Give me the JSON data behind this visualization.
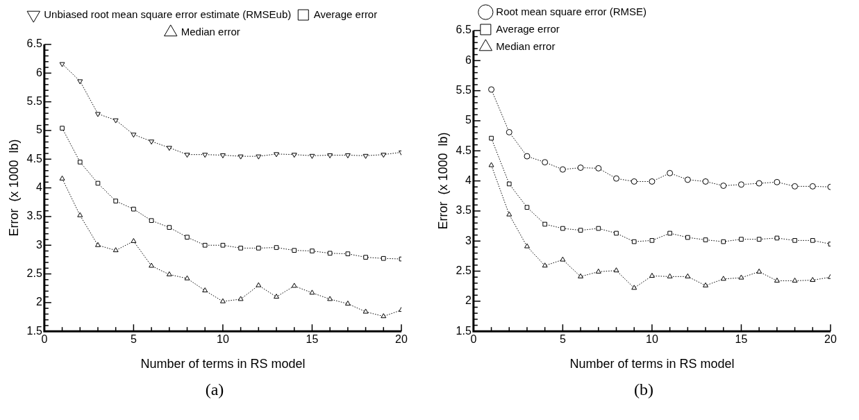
{
  "chart_data": [
    {
      "type": "line",
      "xlabel": "Number of terms in RS model",
      "ylabel": "Error  (x 1000  lb)",
      "annotations": [
        "(a)"
      ],
      "line_style": "dotted",
      "legend": "top",
      "grid": false,
      "x": [
        1,
        2,
        3,
        4,
        5,
        6,
        7,
        8,
        9,
        10,
        11,
        12,
        13,
        14,
        15,
        16,
        17,
        18,
        19,
        20
      ],
      "xlim": [
        0,
        20
      ],
      "xticks": [
        0,
        {
          "value": 1,
          "label": null
        },
        {
          "value": 2,
          "label": null
        },
        {
          "value": 3,
          "label": null
        },
        {
          "value": 4,
          "label": null
        },
        5,
        {
          "value": 6,
          "label": null
        },
        {
          "value": 7,
          "label": null
        },
        {
          "value": 8,
          "label": null
        },
        {
          "value": 9,
          "label": null
        },
        10,
        {
          "value": 11,
          "label": null
        },
        {
          "value": 12,
          "label": null
        },
        {
          "value": 13,
          "label": null
        },
        {
          "value": 14,
          "label": null
        },
        15,
        {
          "value": 16,
          "label": null
        },
        {
          "value": 17,
          "label": null
        },
        {
          "value": 18,
          "label": null
        },
        {
          "value": 19,
          "label": null
        },
        20
      ],
      "ylim": [
        1.5,
        6.5
      ],
      "yticks": [
        1.5,
        2,
        2.5,
        3,
        3.5,
        4,
        4.5,
        5,
        5.5,
        6,
        6.5
      ],
      "series": [
        {
          "name": "Unbiased root mean square error estimate (RMSEub)",
          "color": "#000000",
          "marker": "triangle_down",
          "values": [
            6.16,
            5.86,
            5.29,
            5.18,
            4.93,
            4.81,
            4.7,
            4.58,
            4.58,
            4.57,
            4.55,
            4.55,
            4.59,
            4.58,
            4.56,
            4.57,
            4.57,
            4.56,
            4.58,
            4.62
          ]
        },
        {
          "name": "Average error",
          "color": "#000000",
          "marker": "square",
          "values": [
            5.04,
            4.45,
            4.08,
            3.77,
            3.63,
            3.43,
            3.31,
            3.14,
            3.0,
            3.0,
            2.95,
            2.95,
            2.96,
            2.91,
            2.9,
            2.86,
            2.85,
            2.79,
            2.77,
            2.76
          ]
        },
        {
          "name": "Median error",
          "color": "#000000",
          "marker": "triangle",
          "values": [
            4.16,
            3.52,
            3.0,
            2.91,
            3.07,
            2.64,
            2.49,
            2.42,
            2.21,
            2.02,
            2.06,
            2.3,
            2.1,
            2.29,
            2.17,
            2.06,
            1.98,
            1.84,
            1.76,
            1.87
          ]
        }
      ]
    },
    {
      "type": "line",
      "xlabel": "Number of terms in RS model",
      "ylabel": "Error  (x 1000  lb)",
      "annotations": [
        "(b)"
      ],
      "line_style": "dotted",
      "legend": "top left",
      "grid": false,
      "x": [
        1,
        2,
        3,
        4,
        5,
        6,
        7,
        8,
        9,
        10,
        11,
        12,
        13,
        14,
        15,
        16,
        17,
        18,
        19,
        20
      ],
      "xlim": [
        0,
        20
      ],
      "xticks": [
        0,
        {
          "value": 1,
          "label": null
        },
        {
          "value": 2,
          "label": null
        },
        {
          "value": 3,
          "label": null
        },
        {
          "value": 4,
          "label": null
        },
        5,
        {
          "value": 6,
          "label": null
        },
        {
          "value": 7,
          "label": null
        },
        {
          "value": 8,
          "label": null
        },
        {
          "value": 9,
          "label": null
        },
        10,
        {
          "value": 11,
          "label": null
        },
        {
          "value": 12,
          "label": null
        },
        {
          "value": 13,
          "label": null
        },
        {
          "value": 14,
          "label": null
        },
        15,
        {
          "value": 16,
          "label": null
        },
        {
          "value": 17,
          "label": null
        },
        {
          "value": 18,
          "label": null
        },
        {
          "value": 19,
          "label": null
        },
        20
      ],
      "ylim": [
        1.5,
        6.5
      ],
      "yticks": [
        1.5,
        2,
        2.5,
        3,
        3.5,
        4,
        4.5,
        5,
        5.5,
        6,
        6.5
      ],
      "series": [
        {
          "name": "Root mean square error (RMSE)",
          "color": "#000000",
          "marker": "circle",
          "values": [
            5.52,
            4.81,
            4.41,
            4.31,
            4.19,
            4.22,
            4.21,
            4.04,
            3.99,
            3.99,
            4.13,
            4.02,
            3.99,
            3.92,
            3.94,
            3.96,
            3.98,
            3.91,
            3.91,
            3.9
          ]
        },
        {
          "name": "Average error",
          "color": "#000000",
          "marker": "square",
          "values": [
            4.71,
            3.95,
            3.56,
            3.28,
            3.21,
            3.18,
            3.21,
            3.13,
            2.99,
            3.01,
            3.13,
            3.06,
            3.02,
            2.99,
            3.03,
            3.03,
            3.05,
            3.01,
            3.01,
            2.95
          ]
        },
        {
          "name": "Median error",
          "color": "#000000",
          "marker": "triangle",
          "values": [
            4.26,
            3.44,
            2.91,
            2.59,
            2.69,
            2.41,
            2.49,
            2.51,
            2.22,
            2.42,
            2.41,
            2.41,
            2.26,
            2.37,
            2.39,
            2.49,
            2.34,
            2.34,
            2.35,
            2.4
          ]
        }
      ]
    }
  ]
}
